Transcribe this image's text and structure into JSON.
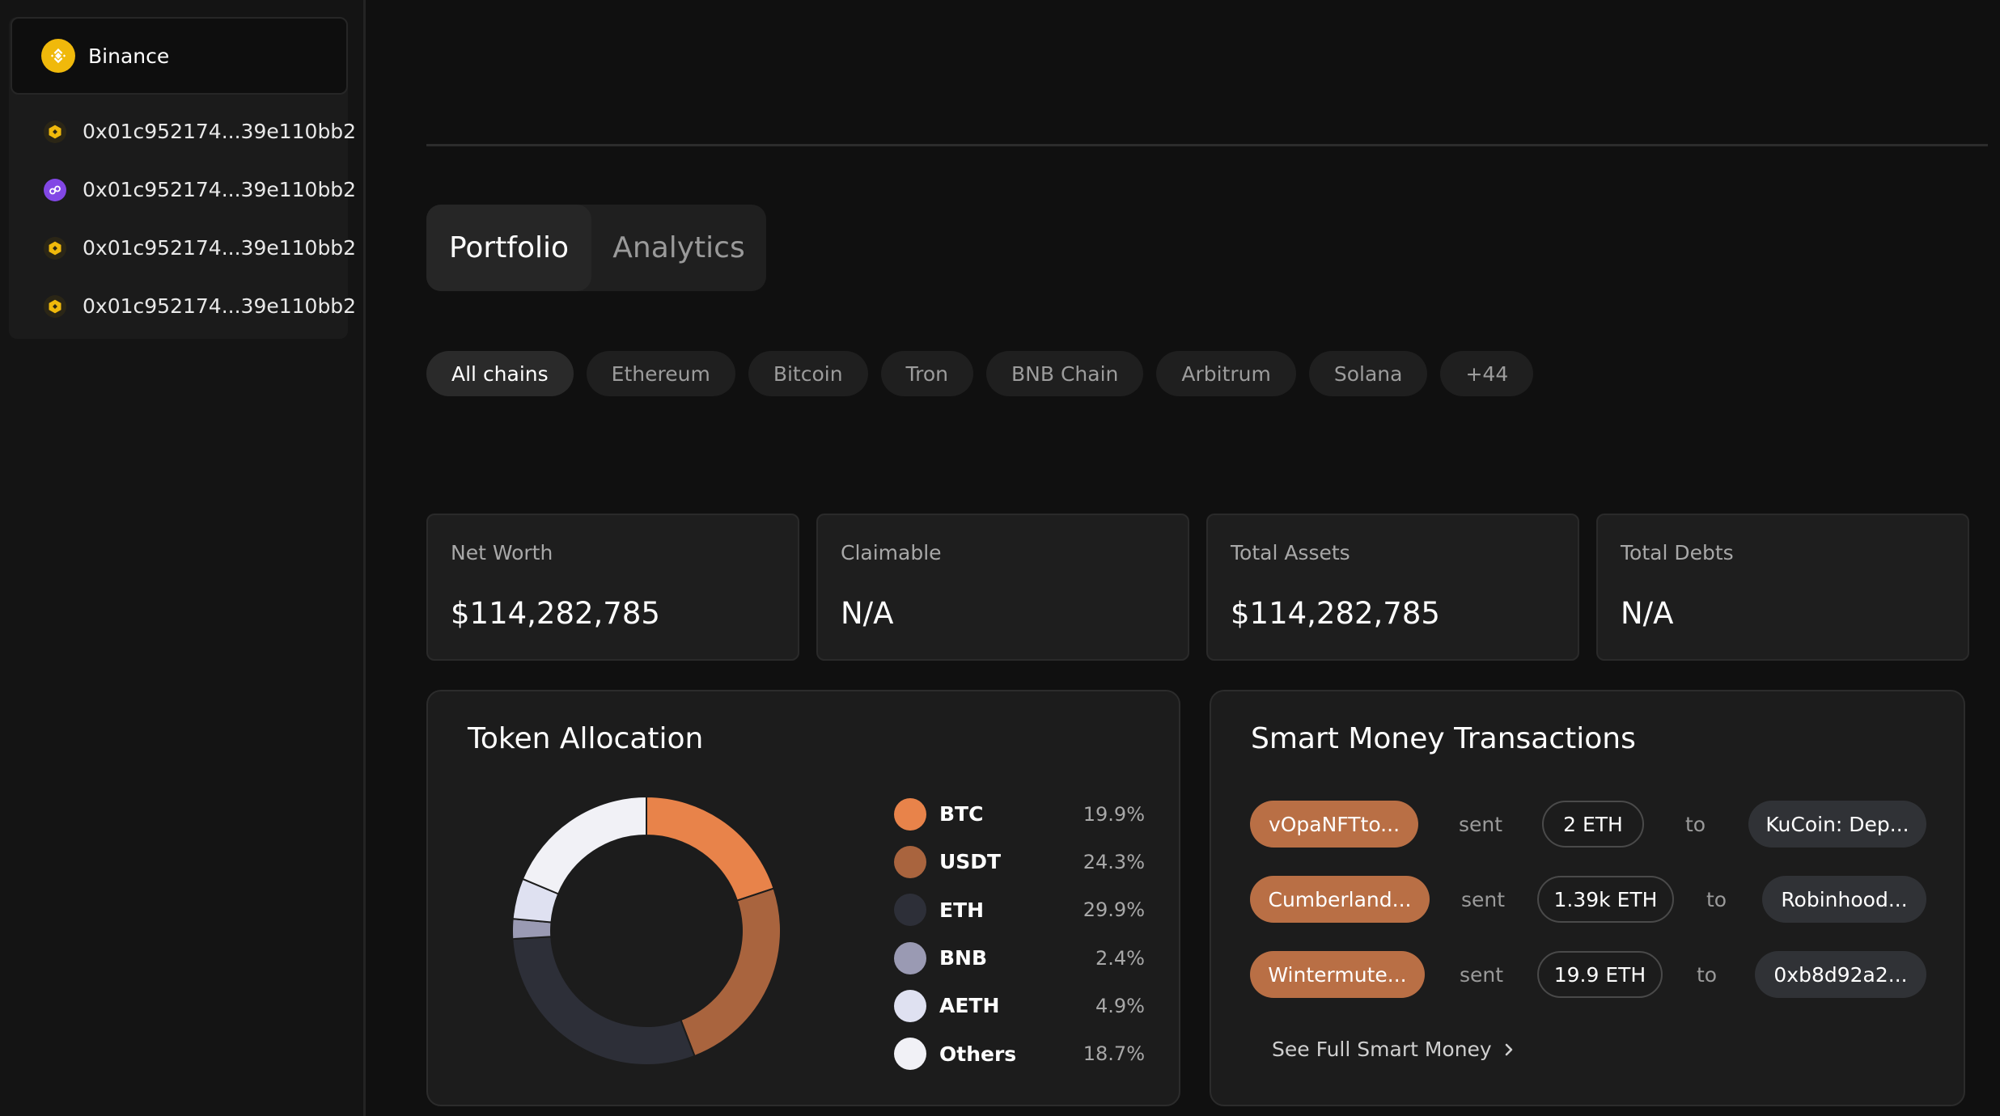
{
  "sidebar": {
    "selected_account": {
      "name": "Binance",
      "icon": "binance-logo-icon"
    },
    "wallets": [
      {
        "address": "0x01c952174...39e110bb2",
        "chain_icon": "bnb-chain-icon"
      },
      {
        "address": "0x01c952174...39e110bb2",
        "chain_icon": "polygon-chain-icon"
      },
      {
        "address": "0x01c952174...39e110bb2",
        "chain_icon": "bnb-chain-icon"
      },
      {
        "address": "0x01c952174...39e110bb2",
        "chain_icon": "bnb-chain-icon"
      }
    ]
  },
  "tabs": [
    {
      "label": "Portfolio",
      "active": true
    },
    {
      "label": "Analytics",
      "active": false
    }
  ],
  "chains": {
    "items": [
      "All chains",
      "Ethereum",
      "Bitcoin",
      "Tron",
      "BNB Chain",
      "Arbitrum",
      "Solana",
      "+44"
    ],
    "selected": "All chains"
  },
  "stats": [
    {
      "label": "Net Worth",
      "value": "$114,282,785"
    },
    {
      "label": "Claimable",
      "value": "N/A"
    },
    {
      "label": "Total Assets",
      "value": "$114,282,785"
    },
    {
      "label": "Total Debts",
      "value": "N/A"
    }
  ],
  "allocation": {
    "title": "Token Allocation",
    "items": [
      {
        "symbol": "BTC",
        "percent": "19.9%",
        "value": 19.9,
        "color": "#e8834a"
      },
      {
        "symbol": "USDT",
        "percent": "24.3%",
        "value": 24.3,
        "color": "#a9643e"
      },
      {
        "symbol": "ETH",
        "percent": "29.9%",
        "value": 29.9,
        "color": "#2d2f38"
      },
      {
        "symbol": "BNB",
        "percent": "2.4%",
        "value": 2.4,
        "color": "#9a9ab3"
      },
      {
        "symbol": "AETH",
        "percent": "4.9%",
        "value": 4.9,
        "color": "#dfe1f1"
      },
      {
        "symbol": "Others",
        "percent": "18.7%",
        "value": 18.7,
        "color": "#f1f1f6"
      }
    ]
  },
  "smart_money": {
    "title": "Smart Money Transactions",
    "sent_word": "sent",
    "to_word": "to",
    "transactions": [
      {
        "from": "vOpaNFTto...",
        "amount": "2 ETH",
        "to": "KuCoin: Dep..."
      },
      {
        "from": "Cumberland...",
        "amount": "1.39k ETH",
        "to": "Robinhood..."
      },
      {
        "from": "Wintermute...",
        "amount": "19.9 ETH",
        "to": "0xb8d92a2..."
      }
    ],
    "see_full_label": "See Full Smart Money"
  },
  "colors": {
    "accent": "#b96f45",
    "background": "#101010",
    "card": "#1c1c1c"
  }
}
